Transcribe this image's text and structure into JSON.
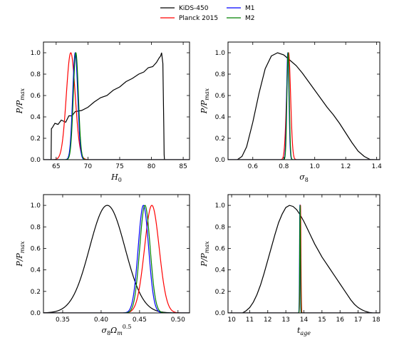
{
  "legend": {
    "entries": [
      {
        "name": "KiDS-450",
        "color": "#000000"
      },
      {
        "name": "Planck 2015",
        "color": "#ff0000"
      },
      {
        "name": "M1",
        "color": "#0000ff"
      },
      {
        "name": "M2",
        "color": "#008000"
      }
    ]
  },
  "chart_data": [
    {
      "type": "line",
      "xlabel": "H₀",
      "ylabel": "P/P_max",
      "xlim": [
        63,
        86
      ],
      "ylim": [
        0,
        1.1
      ],
      "xticks": [
        65,
        70,
        75,
        80,
        85
      ],
      "yticks": [
        0.0,
        0.2,
        0.4,
        0.6,
        0.8,
        1.0
      ],
      "series": [
        {
          "name": "KiDS-450",
          "color": "#000000",
          "x": [
            64.0,
            64.2,
            64.25,
            64.4,
            64.8,
            65.3,
            65.8,
            66.5,
            67.0,
            67.5,
            68.0,
            69.0,
            70.0,
            71.0,
            72.0,
            73.0,
            74.0,
            75.0,
            76.0,
            77.0,
            78.0,
            78.8,
            79.5,
            80.2,
            80.8,
            81.2,
            81.45,
            81.6,
            81.8,
            81.95,
            82.0,
            82.05
          ],
          "y": [
            0.0,
            0.0,
            0.29,
            0.3,
            0.34,
            0.33,
            0.37,
            0.35,
            0.41,
            0.41,
            0.45,
            0.46,
            0.49,
            0.54,
            0.58,
            0.6,
            0.65,
            0.68,
            0.73,
            0.76,
            0.8,
            0.82,
            0.86,
            0.87,
            0.91,
            0.95,
            0.97,
            1.0,
            0.9,
            0.3,
            0.05,
            0.0
          ]
        },
        {
          "name": "Planck 2015",
          "gauss": [
            67.3,
            0.7
          ],
          "color": "#ff0000"
        },
        {
          "name": "M1",
          "gauss": [
            68.0,
            0.4
          ],
          "color": "#0000ff"
        },
        {
          "name": "M2",
          "gauss": [
            68.1,
            0.4
          ],
          "color": "#008000"
        }
      ]
    },
    {
      "type": "line",
      "xlabel": "σ₈",
      "ylabel": "P/P_max",
      "xlim": [
        0.44,
        1.42
      ],
      "ylim": [
        0,
        1.1
      ],
      "xticks": [
        0.6,
        0.8,
        1.0,
        1.2,
        1.4
      ],
      "yticks": [
        0.0,
        0.2,
        0.4,
        0.6,
        0.8,
        1.0
      ],
      "series": [
        {
          "name": "KiDS-450",
          "color": "#000000",
          "x": [
            0.5,
            0.53,
            0.56,
            0.6,
            0.64,
            0.68,
            0.72,
            0.76,
            0.8,
            0.84,
            0.88,
            0.92,
            0.96,
            1.0,
            1.04,
            1.08,
            1.12,
            1.16,
            1.2,
            1.24,
            1.28,
            1.32,
            1.36,
            1.38
          ],
          "y": [
            0.0,
            0.03,
            0.12,
            0.35,
            0.62,
            0.85,
            0.97,
            1.0,
            0.98,
            0.93,
            0.88,
            0.81,
            0.73,
            0.65,
            0.57,
            0.49,
            0.42,
            0.34,
            0.25,
            0.16,
            0.08,
            0.03,
            0.0,
            0.0
          ]
        },
        {
          "name": "Planck 2015",
          "gauss": [
            0.831,
            0.013
          ],
          "color": "#ff0000"
        },
        {
          "name": "M1",
          "gauss": [
            0.826,
            0.0075
          ],
          "color": "#0000ff"
        },
        {
          "name": "M2",
          "gauss": [
            0.828,
            0.0075
          ],
          "color": "#008000"
        }
      ]
    },
    {
      "type": "line",
      "xlabel": "σ₈Ωₘ⁰⋅⁵",
      "ylabel": "P/P_max",
      "xlim": [
        0.325,
        0.515
      ],
      "ylim": [
        0,
        1.1
      ],
      "xticks": [
        0.35,
        0.4,
        0.45,
        0.5
      ],
      "yticks": [
        0.0,
        0.2,
        0.4,
        0.6,
        0.8,
        1.0
      ],
      "series": [
        {
          "name": "KiDS-450",
          "gauss": [
            0.408,
            0.023
          ],
          "color": "#000000"
        },
        {
          "name": "Planck 2015",
          "gauss": [
            0.466,
            0.0095
          ],
          "color": "#ff0000"
        },
        {
          "name": "M1",
          "gauss": [
            0.455,
            0.0068
          ],
          "color": "#0000ff"
        },
        {
          "name": "M2",
          "gauss": [
            0.457,
            0.0068
          ],
          "color": "#008000"
        }
      ]
    },
    {
      "type": "line",
      "xlabel": "t_age",
      "ylabel": "P/P_max",
      "xlim": [
        9.8,
        18.2
      ],
      "ylim": [
        0,
        1.1
      ],
      "xticks": [
        10,
        11,
        12,
        13,
        14,
        15,
        16,
        17,
        18
      ],
      "yticks": [
        0.0,
        0.2,
        0.4,
        0.6,
        0.8,
        1.0
      ],
      "series": [
        {
          "name": "KiDS-450",
          "color": "#000000",
          "x": [
            10.6,
            10.8,
            11.0,
            11.2,
            11.4,
            11.6,
            11.8,
            12.0,
            12.2,
            12.4,
            12.6,
            12.8,
            13.0,
            13.2,
            13.4,
            13.6,
            13.8,
            14.0,
            14.2,
            14.4,
            14.6,
            14.8,
            15.0,
            15.2,
            15.4,
            15.6,
            15.8,
            16.0,
            16.2,
            16.4,
            16.6,
            16.8,
            17.0,
            17.2,
            17.4,
            17.6,
            17.8
          ],
          "y": [
            0.0,
            0.02,
            0.05,
            0.1,
            0.17,
            0.26,
            0.37,
            0.49,
            0.61,
            0.73,
            0.84,
            0.92,
            0.98,
            1.0,
            0.99,
            0.96,
            0.91,
            0.85,
            0.78,
            0.71,
            0.64,
            0.58,
            0.52,
            0.47,
            0.42,
            0.37,
            0.32,
            0.27,
            0.22,
            0.17,
            0.12,
            0.08,
            0.05,
            0.03,
            0.015,
            0.005,
            0.0
          ]
        },
        {
          "name": "Planck 2015",
          "gauss": [
            13.81,
            0.025
          ],
          "color": "#ff0000"
        },
        {
          "name": "M1",
          "gauss": [
            13.78,
            0.02
          ],
          "color": "#0000ff"
        },
        {
          "name": "M2",
          "gauss": [
            13.79,
            0.02
          ],
          "color": "#008000"
        }
      ]
    }
  ]
}
